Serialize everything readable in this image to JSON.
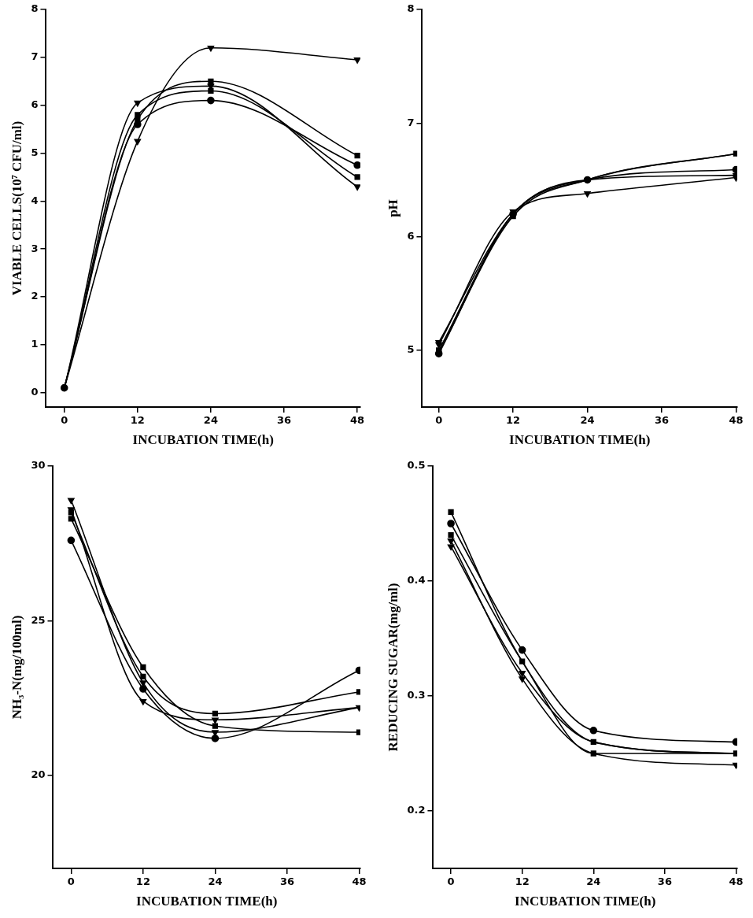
{
  "chart_data": [
    {
      "type": "line",
      "xlabel": "INCUBATION TIME(h)",
      "ylabel": "VIABLE CELLS(10⁷ CFU/ml)",
      "x": [
        0,
        12,
        24,
        48
      ],
      "xlim": [
        -3,
        48.5
      ],
      "xticks": [
        0,
        12,
        24,
        36,
        48
      ],
      "ylim": [
        -0.3,
        8
      ],
      "yticks": [
        0,
        1,
        2,
        3,
        4,
        5,
        6,
        7,
        8
      ],
      "grid": false,
      "legend": false,
      "line_style": "solid",
      "series": [
        {
          "color": "#000000",
          "marker": "circle",
          "values": [
            0.1,
            5.6,
            6.1,
            4.75
          ]
        },
        {
          "color": "#000000",
          "marker": "square",
          "values": [
            0.1,
            5.8,
            6.3,
            4.5
          ]
        },
        {
          "color": "#000000",
          "marker": "square",
          "values": [
            0.1,
            5.7,
            6.5,
            4.95
          ]
        },
        {
          "color": "#000000",
          "marker": "triangle",
          "values": [
            0.1,
            6.05,
            6.4,
            4.3
          ]
        },
        {
          "color": "#000000",
          "marker": "triangle",
          "values": [
            0.1,
            5.25,
            7.2,
            6.95
          ]
        }
      ]
    },
    {
      "type": "line",
      "xlabel": "INCUBATION TIME(h)",
      "ylabel": "pH",
      "x": [
        0,
        12,
        24,
        48
      ],
      "xlim": [
        -2.7,
        48.2
      ],
      "xticks": [
        0,
        12,
        24,
        36,
        48
      ],
      "ylim": [
        4.5,
        8
      ],
      "yticks": [
        5,
        6,
        7,
        8
      ],
      "grid": false,
      "legend": false,
      "line_style": "solid",
      "series": [
        {
          "color": "#000000",
          "marker": "circle",
          "values": [
            4.97,
            6.2,
            6.5,
            6.59
          ]
        },
        {
          "color": "#000000",
          "marker": "square",
          "values": [
            5.0,
            6.2,
            6.5,
            6.73
          ]
        },
        {
          "color": "#000000",
          "marker": "square",
          "values": [
            4.98,
            6.18,
            6.5,
            6.73
          ]
        },
        {
          "color": "#000000",
          "marker": "triangle",
          "values": [
            5.05,
            6.22,
            6.38,
            6.52
          ]
        },
        {
          "color": "#000000",
          "marker": "triangle",
          "values": [
            5.07,
            6.2,
            6.5,
            6.54
          ]
        }
      ]
    },
    {
      "type": "line",
      "xlabel": "INCUBATION TIME(h)",
      "ylabel": "NH₃-N(mg/100ml)",
      "x": [
        0,
        12,
        24,
        48
      ],
      "xlim": [
        -3,
        48.2
      ],
      "xticks": [
        0,
        12,
        24,
        36,
        48
      ],
      "ylim": [
        17,
        30
      ],
      "yticks": [
        20,
        25,
        30
      ],
      "grid": false,
      "legend": false,
      "line_style": "solid",
      "series": [
        {
          "color": "#000000",
          "marker": "circle",
          "values": [
            27.6,
            22.8,
            21.2,
            23.4
          ]
        },
        {
          "color": "#000000",
          "marker": "square",
          "values": [
            28.3,
            23.5,
            21.6,
            21.4
          ]
        },
        {
          "color": "#000000",
          "marker": "square",
          "values": [
            28.5,
            23.2,
            22.0,
            22.7
          ]
        },
        {
          "color": "#000000",
          "marker": "triangle",
          "values": [
            28.6,
            22.4,
            21.8,
            22.2
          ]
        },
        {
          "color": "#000000",
          "marker": "triangle",
          "values": [
            28.9,
            23.0,
            21.4,
            22.2
          ]
        }
      ]
    },
    {
      "type": "line",
      "xlabel": "INCUBATION TIME(h)",
      "ylabel": "REDUCING SUGAR(mg/ml)",
      "x": [
        0,
        12,
        24,
        48
      ],
      "xlim": [
        -3,
        48.2
      ],
      "xticks": [
        0,
        12,
        24,
        36,
        48
      ],
      "ylim": [
        0.15,
        0.5
      ],
      "yticks": [
        0.2,
        0.3,
        0.4,
        0.5
      ],
      "grid": false,
      "legend": false,
      "line_style": "solid",
      "series": [
        {
          "color": "#000000",
          "marker": "circle",
          "values": [
            0.45,
            0.34,
            0.27,
            0.26
          ]
        },
        {
          "color": "#000000",
          "marker": "square",
          "values": [
            0.46,
            0.33,
            0.26,
            0.25
          ]
        },
        {
          "color": "#000000",
          "marker": "square",
          "values": [
            0.44,
            0.33,
            0.25,
            0.25
          ]
        },
        {
          "color": "#000000",
          "marker": "triangle",
          "values": [
            0.43,
            0.32,
            0.26,
            0.25
          ]
        },
        {
          "color": "#000000",
          "marker": "triangle",
          "values": [
            0.435,
            0.315,
            0.25,
            0.24
          ]
        }
      ]
    }
  ]
}
